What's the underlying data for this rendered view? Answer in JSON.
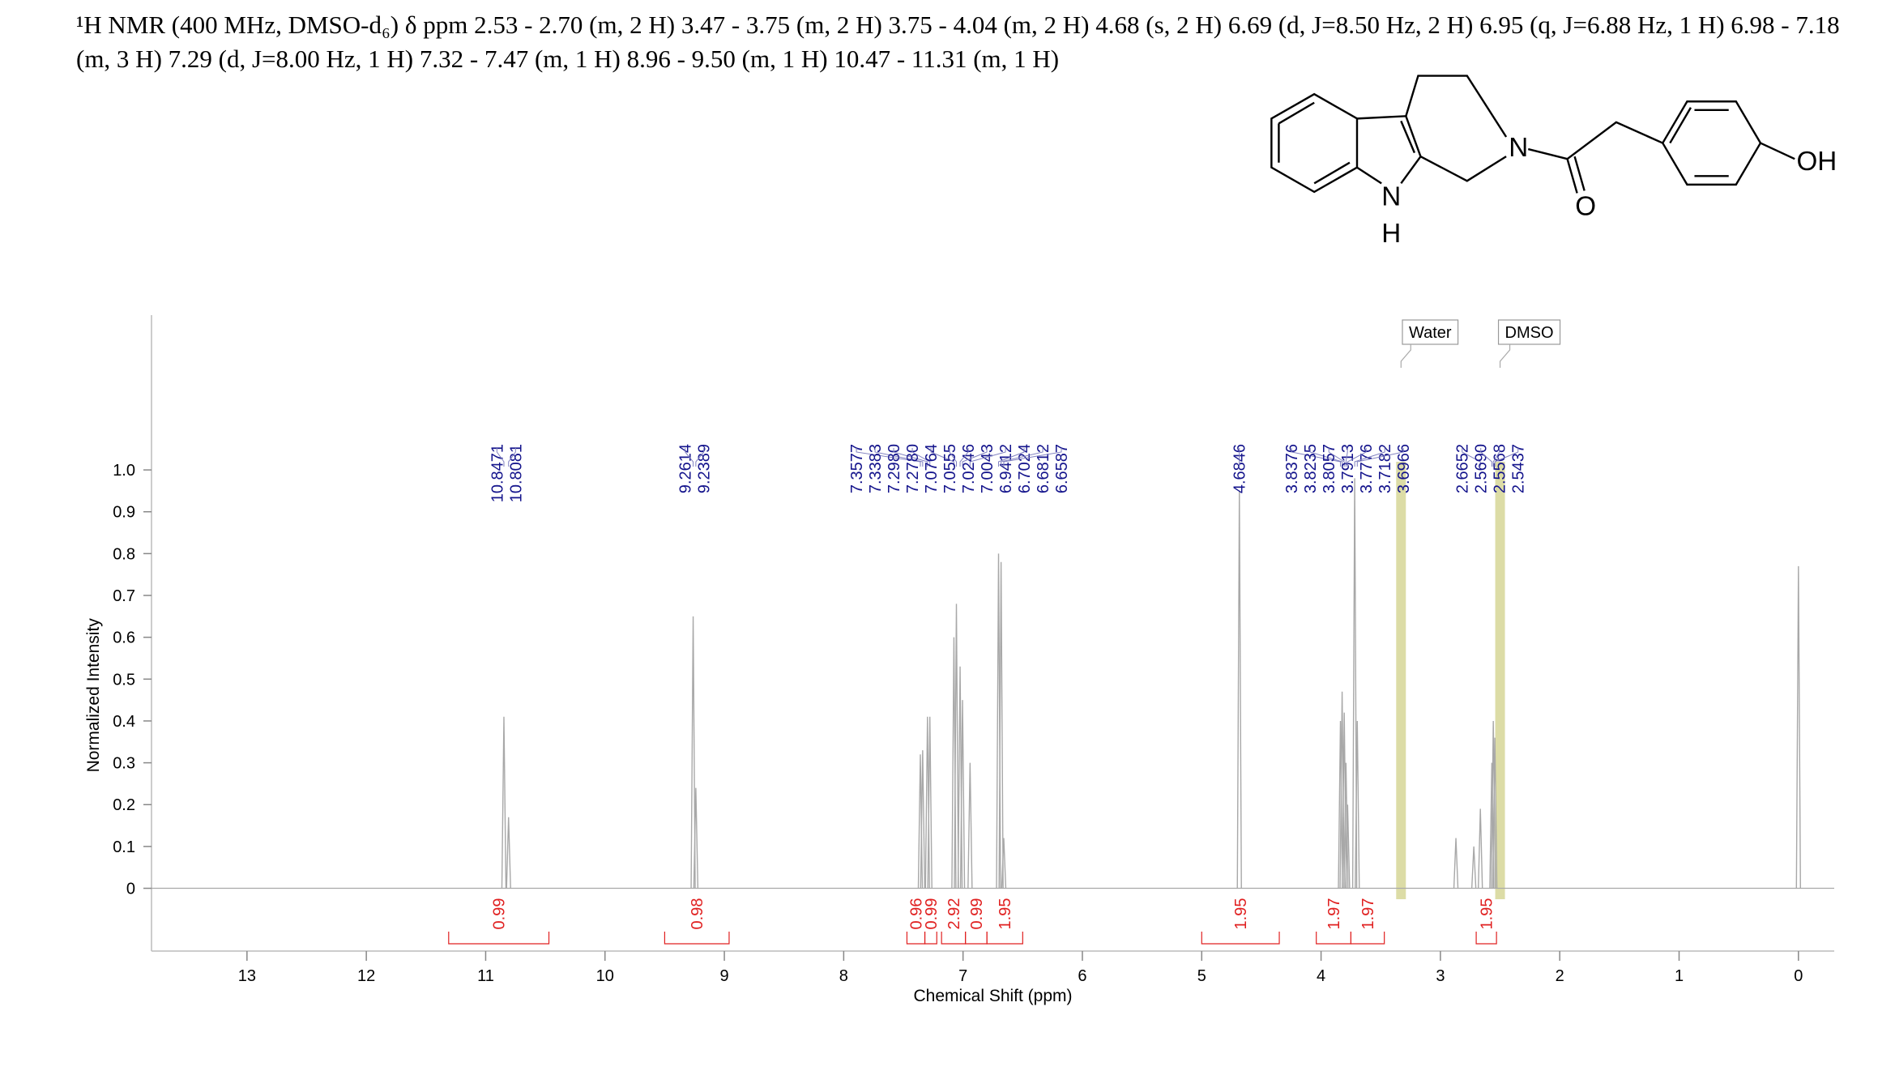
{
  "header": {
    "text": "¹H NMR (400 MHz, DMSO-d₆) δ ppm 2.53 - 2.70 (m, 2 H) 3.47 - 3.75 (m, 2 H) 3.75 - 4.04 (m, 2 H) 4.68 (s, 2 H) 6.69 (d, J=8.50 Hz, 2 H) 6.95 (q, J=6.88 Hz, 1 H) 6.98 - 7.18 (m, 3 H) 7.29 (d, J=8.00 Hz, 1 H) 7.32 - 7.47 (m, 1 H) 8.96 - 9.50 (m, 1 H) 10.47 - 11.31 (m, 1 H)"
  },
  "structure": {
    "atoms": [
      "N",
      "H",
      "N",
      "O",
      "OH"
    ]
  },
  "chart_data": {
    "type": "nmr",
    "x_label": "Chemical Shift (ppm)",
    "y_label": "Normalized Intensity",
    "xlim": [
      13.8,
      -0.3
    ],
    "ylim": [
      -0.15,
      1.37
    ],
    "xticks": [
      13,
      12,
      11,
      10,
      9,
      8,
      7,
      6,
      5,
      4,
      3,
      2,
      1,
      0
    ],
    "yticks": [
      0,
      0.1,
      0.2,
      0.3,
      0.4,
      0.5,
      0.6,
      0.7,
      0.8,
      0.9,
      {
        "value": 1,
        "label": "1.0"
      }
    ],
    "peaks": {
      "color": "#a8a8a8",
      "x": [
        10.8471,
        10.8081,
        9.2614,
        9.2389,
        7.3577,
        7.3383,
        7.298,
        7.278,
        7.0764,
        7.0555,
        7.0246,
        7.0043,
        6.9412,
        6.7024,
        6.6812,
        6.6587,
        4.6846,
        3.8376,
        3.8235,
        3.8057,
        3.7913,
        3.7776,
        3.7182,
        3.6966,
        2.87,
        2.72,
        2.6652,
        2.569,
        2.5568,
        2.5437,
        0
      ],
      "values": [
        0.41,
        0.17,
        0.65,
        0.24,
        0.32,
        0.33,
        0.41,
        0.41,
        0.6,
        0.68,
        0.53,
        0.45,
        0.3,
        0.8,
        0.78,
        0.12,
        0.95,
        0.4,
        0.47,
        0.42,
        0.3,
        0.2,
        0.98,
        0.4,
        0.12,
        0.1,
        0.19,
        0.3,
        0.4,
        0.36,
        0.77
      ]
    },
    "peak_labels": [
      {
        "value": 10.8471,
        "label": "10.8471"
      },
      {
        "value": 10.8081,
        "label": "10.8081"
      },
      {
        "value": 9.2614,
        "label": "9.2614"
      },
      {
        "value": 9.2389,
        "label": "9.2389"
      },
      {
        "value": 7.3577,
        "label": "7.3577"
      },
      {
        "value": 7.3383,
        "label": "7.3383"
      },
      {
        "value": 7.298,
        "label": "7.2980"
      },
      {
        "value": 7.278,
        "label": "7.2780"
      },
      {
        "value": 7.0764,
        "label": "7.0764"
      },
      {
        "value": 7.0555,
        "label": "7.0555"
      },
      {
        "value": 7.0246,
        "label": "7.0246"
      },
      {
        "value": 7.0043,
        "label": "7.0043"
      },
      {
        "value": 6.9412,
        "label": "6.9412"
      },
      {
        "value": 6.7024,
        "label": "6.7024"
      },
      {
        "value": 6.6812,
        "label": "6.6812"
      },
      {
        "value": 6.6587,
        "label": "6.6587"
      },
      {
        "value": 4.6846,
        "label": "4.6846"
      },
      {
        "value": 3.8376,
        "label": "3.8376"
      },
      {
        "value": 3.8235,
        "label": "3.8235"
      },
      {
        "value": 3.8057,
        "label": "3.8057"
      },
      {
        "value": 3.7913,
        "label": "3.7913"
      },
      {
        "value": 3.7776,
        "label": "3.7776"
      },
      {
        "value": 3.7182,
        "label": "3.7182"
      },
      {
        "value": 3.6966,
        "label": "3.6966"
      },
      {
        "value": 2.6652,
        "label": "2.6652"
      },
      {
        "value": 2.569,
        "label": "2.5690"
      },
      {
        "value": 2.5568,
        "label": "2.5568"
      },
      {
        "value": 2.5437,
        "label": "2.5437"
      }
    ],
    "integrals": {
      "color": "#e02020",
      "values": [
        0.99,
        0.98,
        0.96,
        0.99,
        2.92,
        0.99,
        1.95,
        1.95,
        1.97,
        1.97,
        1.95
      ],
      "ranges": [
        [
          11.31,
          10.47
        ],
        [
          9.5,
          8.96
        ],
        [
          7.47,
          7.32
        ],
        [
          7.32,
          7.22
        ],
        [
          7.18,
          6.98
        ],
        [
          6.98,
          6.8
        ],
        [
          6.8,
          6.5
        ],
        [
          5.0,
          4.35
        ],
        [
          4.04,
          3.75
        ],
        [
          3.75,
          3.47
        ],
        [
          2.7,
          2.53
        ]
      ]
    },
    "solvents": [
      {
        "label": "Water",
        "value": 3.33
      },
      {
        "label": "DMSO",
        "value": 2.5
      }
    ]
  }
}
